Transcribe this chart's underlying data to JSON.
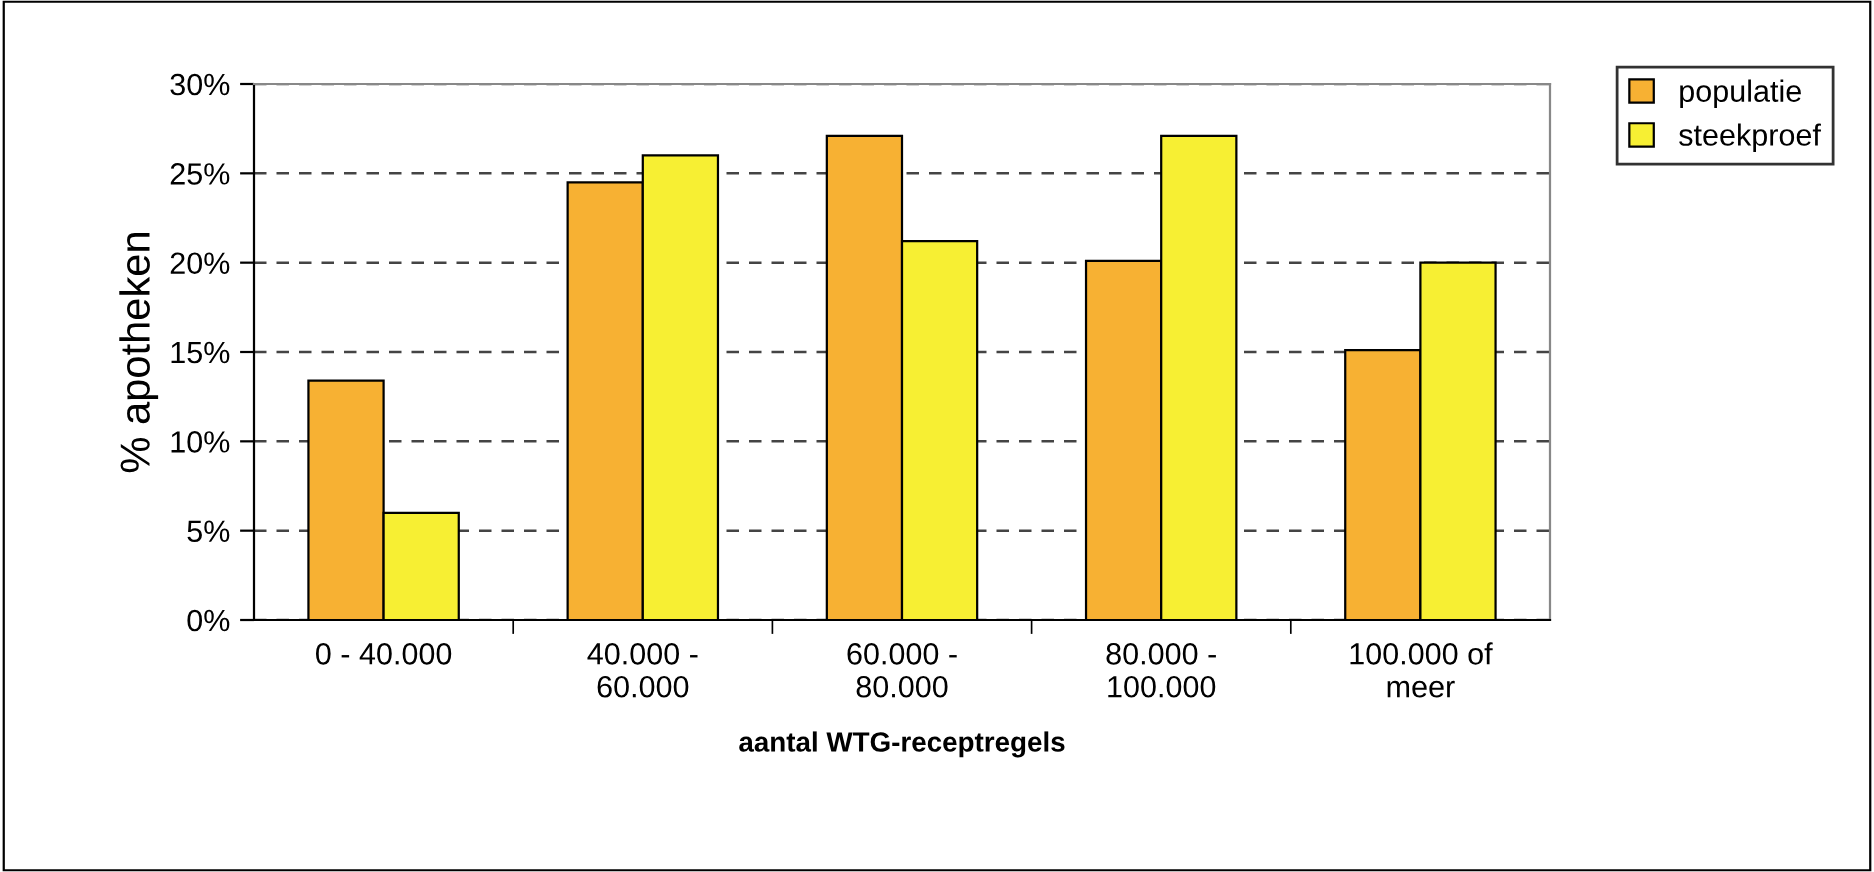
{
  "chart_data": {
    "type": "bar",
    "xlabel": "aantal WTG-receptregels",
    "ylabel": "% apotheken",
    "categories": [
      "0 - 40.000",
      "40.000 -\n60.000",
      "60.000 -\n80.000",
      "80.000 -\n100.000",
      "100.000 of\nmeer"
    ],
    "series": [
      {
        "name": "populatie",
        "color": "#f7b133",
        "values": [
          13.4,
          24.5,
          27.1,
          20.1,
          15.1
        ]
      },
      {
        "name": "steekproef",
        "color": "#f7ef33",
        "values": [
          6.0,
          26.0,
          21.2,
          27.1,
          20.0
        ]
      }
    ],
    "ylim": [
      0,
      30
    ],
    "yticks": [
      {
        "value": 0,
        "label": "0%"
      },
      {
        "value": 5,
        "label": "5%"
      },
      {
        "value": 10,
        "label": "10%"
      },
      {
        "value": 15,
        "label": "15%"
      },
      {
        "value": 20,
        "label": "20%"
      },
      {
        "value": 25,
        "label": "25%"
      },
      {
        "value": 30,
        "label": "30%"
      }
    ],
    "grid": "y",
    "legend": "top right"
  }
}
